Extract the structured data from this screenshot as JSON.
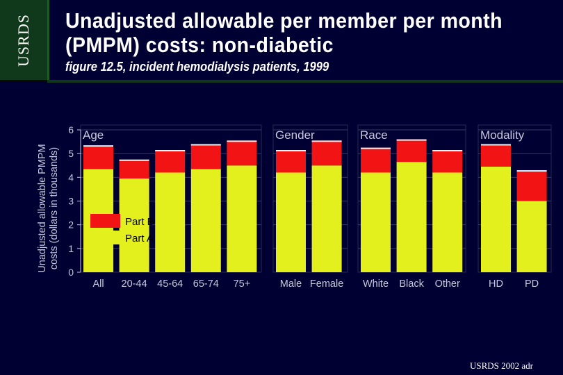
{
  "logo": {
    "text": "USRDS"
  },
  "header": {
    "title_line1": "Unadjusted allowable per member per month",
    "title_line2": "(PMPM) costs: non-diabetic",
    "subtitle": "figure 12.5, incident hemodialysis patients, 1999"
  },
  "footer": {
    "text": "USRDS 2002 adr"
  },
  "chart_data": {
    "type": "bar",
    "stacked": true,
    "ylabel_line1": "Unadjusted allowable PMPM",
    "ylabel_line2": "costs (dollars in thousands)",
    "ylim": [
      0,
      6
    ],
    "yticks": [
      "0",
      "1",
      "2",
      "3",
      "4",
      "5",
      "6"
    ],
    "groups": [
      {
        "label": "Age",
        "categories": [
          "All",
          "20-44",
          "45-64",
          "65-74",
          "75+"
        ]
      },
      {
        "label": "Gender",
        "categories": [
          "Male",
          "Female"
        ]
      },
      {
        "label": "Race",
        "categories": [
          "White",
          "Black",
          "Other"
        ]
      },
      {
        "label": "Modality",
        "categories": [
          "HD",
          "PD"
        ]
      }
    ],
    "categories": [
      "All",
      "20-44",
      "45-64",
      "65-74",
      "75+",
      "Male",
      "Female",
      "White",
      "Black",
      "Other",
      "HD",
      "PD"
    ],
    "series": [
      {
        "name": "Part A",
        "color": "#e4f01e",
        "values": [
          4.35,
          3.95,
          4.2,
          4.35,
          4.5,
          4.2,
          4.5,
          4.2,
          4.65,
          4.2,
          4.45,
          3.0
        ]
      },
      {
        "name": "Part B",
        "color": "#f21414",
        "values": [
          1.0,
          0.8,
          0.95,
          1.05,
          1.05,
          0.95,
          1.05,
          1.05,
          0.95,
          0.95,
          0.95,
          1.3
        ]
      }
    ],
    "legend_position": "inside-left"
  }
}
